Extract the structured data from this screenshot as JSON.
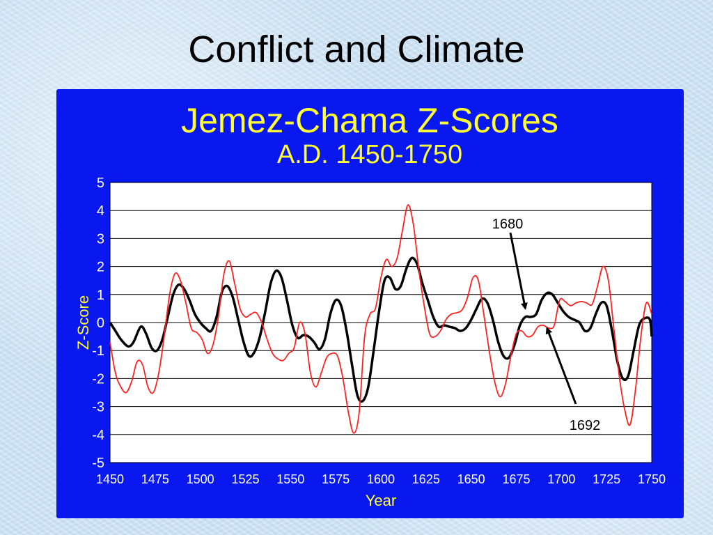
{
  "slide": {
    "title": "Conflict and Climate"
  },
  "colors": {
    "panel": "#0a18f0",
    "title": "#ffff33",
    "plot_bg": "#ffffff",
    "series_black": "#000000",
    "series_red": "#ff2020"
  },
  "chart_data": {
    "type": "line",
    "title": "Jemez-Chama Z-Scores",
    "subtitle": "A.D. 1450-1750",
    "xlabel": "Year",
    "ylabel": "Z-Score",
    "xlim": [
      1450,
      1750
    ],
    "ylim": [
      -5,
      5
    ],
    "xticks": [
      1450,
      1475,
      1500,
      1525,
      1550,
      1575,
      1600,
      1625,
      1650,
      1675,
      1700,
      1725,
      1750
    ],
    "yticks": [
      5,
      4,
      3,
      2,
      1,
      0,
      -1,
      -2,
      -3,
      -4,
      -5
    ],
    "grid": "horizontal",
    "legend": "none",
    "series": [
      {
        "color": "#000000",
        "x": [
          1450,
          1453,
          1456,
          1460,
          1463,
          1467,
          1470,
          1473,
          1476,
          1479,
          1482,
          1485,
          1488,
          1491,
          1494,
          1497,
          1500,
          1503,
          1506,
          1509,
          1512,
          1515,
          1518,
          1521,
          1524,
          1527,
          1530,
          1533,
          1536,
          1539,
          1542,
          1545,
          1548,
          1551,
          1554,
          1557,
          1560,
          1563,
          1566,
          1569,
          1572,
          1575,
          1578,
          1581,
          1584,
          1587,
          1590,
          1593,
          1596,
          1599,
          1602,
          1605,
          1608,
          1611,
          1614,
          1617,
          1620,
          1623,
          1626,
          1629,
          1632,
          1635,
          1638,
          1641,
          1644,
          1647,
          1650,
          1653,
          1656,
          1659,
          1662,
          1665,
          1668,
          1671,
          1674,
          1677,
          1680,
          1683,
          1686,
          1689,
          1692,
          1695,
          1698,
          1701,
          1704,
          1707,
          1710,
          1713,
          1716,
          1719,
          1722,
          1725,
          1728,
          1731,
          1734,
          1737,
          1740,
          1743,
          1746,
          1749,
          1750
        ],
        "y": [
          0,
          -0.3,
          -0.6,
          -0.85,
          -0.7,
          -0.15,
          -0.4,
          -0.9,
          -1.0,
          -0.6,
          0.2,
          1.0,
          1.35,
          1.2,
          0.8,
          0.3,
          0,
          -0.2,
          -0.3,
          0.2,
          1.1,
          1.3,
          0.9,
          0.1,
          -0.7,
          -1.2,
          -1.05,
          -0.5,
          0.4,
          1.4,
          1.85,
          1.6,
          0.8,
          -0.1,
          -0.55,
          -0.45,
          -0.5,
          -0.7,
          -0.95,
          -0.6,
          0.3,
          0.8,
          0.6,
          -0.3,
          -1.5,
          -2.6,
          -2.8,
          -2.3,
          -1.0,
          0.4,
          1.5,
          1.6,
          1.2,
          1.3,
          1.9,
          2.3,
          2.1,
          1.4,
          0.8,
          0.2,
          -0.15,
          -0.1,
          -0.15,
          -0.2,
          -0.3,
          -0.2,
          0.1,
          0.5,
          0.85,
          0.7,
          0.1,
          -0.7,
          -1.2,
          -1.25,
          -0.8,
          -0.1,
          0.2,
          0.2,
          0.3,
          0.8,
          1.05,
          1.0,
          0.7,
          0.4,
          0.2,
          0.1,
          0,
          -0.3,
          -0.2,
          0.3,
          0.7,
          0.6,
          -0.3,
          -1.4,
          -2.0,
          -1.9,
          -1.0,
          -0.1,
          0.15,
          0.1,
          -0.5
        ]
      },
      {
        "color": "#ff2020",
        "x": [
          1450,
          1453,
          1456,
          1459,
          1462,
          1465,
          1468,
          1471,
          1474,
          1477,
          1480,
          1483,
          1486,
          1489,
          1492,
          1495,
          1498,
          1501,
          1504,
          1507,
          1510,
          1513,
          1516,
          1519,
          1522,
          1525,
          1528,
          1531,
          1534,
          1537,
          1540,
          1543,
          1546,
          1549,
          1552,
          1555,
          1558,
          1561,
          1564,
          1567,
          1570,
          1573,
          1576,
          1579,
          1582,
          1585,
          1588,
          1591,
          1594,
          1597,
          1600,
          1603,
          1606,
          1609,
          1612,
          1615,
          1618,
          1621,
          1624,
          1627,
          1630,
          1633,
          1636,
          1639,
          1642,
          1645,
          1648,
          1651,
          1654,
          1657,
          1660,
          1663,
          1666,
          1669,
          1672,
          1675,
          1678,
          1681,
          1684,
          1687,
          1690,
          1693,
          1696,
          1699,
          1702,
          1705,
          1708,
          1711,
          1714,
          1717,
          1720,
          1723,
          1726,
          1729,
          1732,
          1735,
          1738,
          1741,
          1744,
          1747,
          1750
        ],
        "y": [
          -0.7,
          -1.8,
          -2.3,
          -2.5,
          -2.1,
          -1.4,
          -1.5,
          -2.3,
          -2.5,
          -1.8,
          -0.5,
          1.0,
          1.75,
          1.5,
          0.7,
          -0.2,
          -0.35,
          -0.6,
          -1.1,
          -0.8,
          0.2,
          1.7,
          2.2,
          1.4,
          0.5,
          0.2,
          0.3,
          0.35,
          0,
          -0.6,
          -1.1,
          -1.3,
          -1.35,
          -1.1,
          -0.9,
          0,
          -0.4,
          -1.8,
          -2.3,
          -1.8,
          -1.25,
          -1.1,
          -1.2,
          -2.0,
          -3.2,
          -3.95,
          -3.2,
          -0.5,
          0.3,
          0.5,
          1.6,
          2.25,
          2.0,
          2.3,
          3.3,
          4.2,
          3.5,
          1.9,
          0.6,
          -0.4,
          -0.5,
          -0.3,
          0.1,
          0.3,
          0.35,
          0.45,
          0.9,
          1.6,
          1.5,
          0.3,
          -1.0,
          -2.1,
          -2.65,
          -2.2,
          -1.2,
          -0.4,
          -0.3,
          -0.5,
          -0.45,
          -0.15,
          -0.1,
          -0.2,
          -0.1,
          0.8,
          0.75,
          0.6,
          0.7,
          0.75,
          0.7,
          0.65,
          1.3,
          2.0,
          1.5,
          -0.2,
          -1.9,
          -3.1,
          -3.65,
          -2.4,
          -0.5,
          0.7,
          0.3
        ]
      }
    ],
    "annotations": [
      {
        "text": "1680",
        "x": 1680,
        "y": 0.5
      },
      {
        "text": "1692",
        "x": 1692,
        "y": -0.2
      }
    ]
  }
}
